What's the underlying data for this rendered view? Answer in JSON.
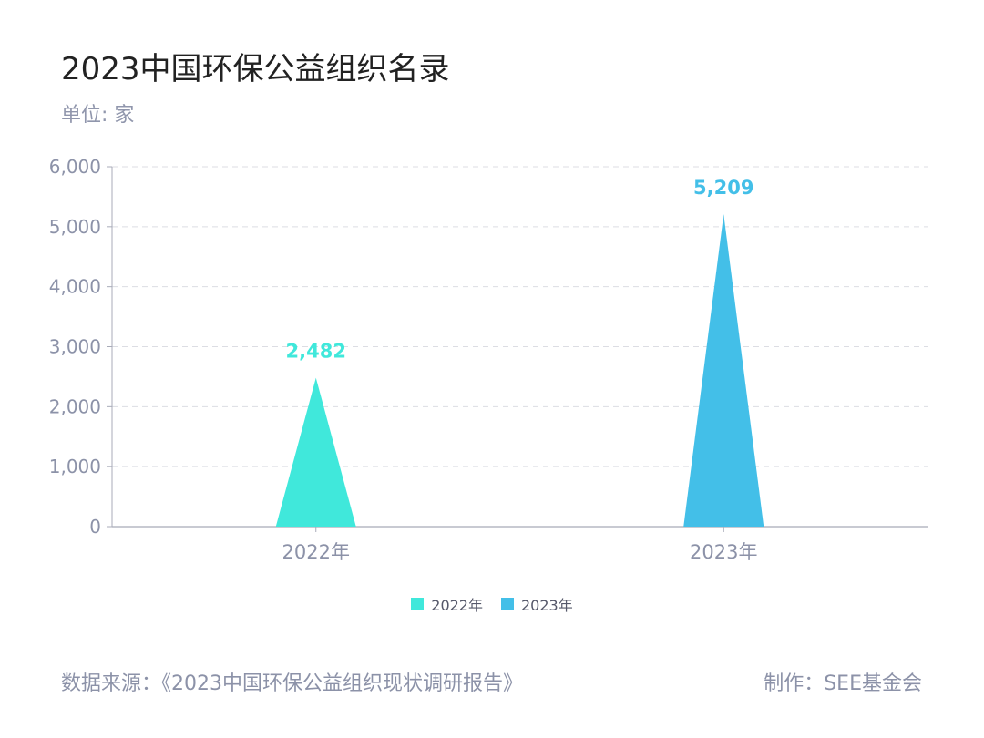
{
  "title": "2023中国环保公益组织名录",
  "unit_label": "单位: 家",
  "footer": {
    "source": "数据来源：《2023中国环保公益组织现状调研报告》",
    "maker": "制作：SEE基金会"
  },
  "chart_data": {
    "type": "bar",
    "bar_shape": "triangle",
    "categories": [
      "2022年",
      "2023年"
    ],
    "values": [
      2482,
      5209
    ],
    "value_labels": [
      "2,482",
      "5,209"
    ],
    "colors": [
      "#40e8db",
      "#43bfe8"
    ],
    "legend": [
      "2022年",
      "2023年"
    ],
    "legend_position": "bottom-center",
    "ylim": [
      0,
      6000
    ],
    "yticks": [
      0,
      1000,
      2000,
      3000,
      4000,
      5000,
      6000
    ],
    "ytick_labels": [
      "0",
      "1,000",
      "2,000",
      "3,000",
      "4,000",
      "5,000",
      "6,000"
    ],
    "grid": true,
    "title": "2023中国环保公益组织名录",
    "ylabel": "单位: 家"
  }
}
